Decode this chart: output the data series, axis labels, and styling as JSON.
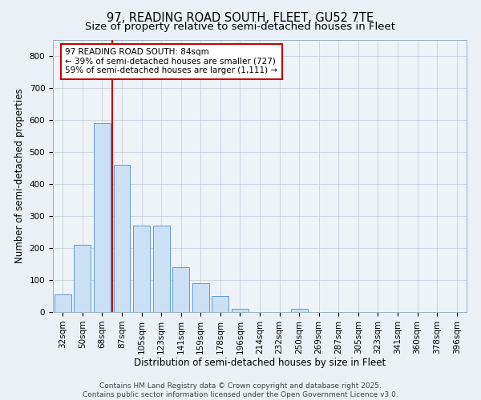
{
  "title": "97, READING ROAD SOUTH, FLEET, GU52 7TE",
  "subtitle": "Size of property relative to semi-detached houses in Fleet",
  "xlabel": "Distribution of semi-detached houses by size in Fleet",
  "ylabel": "Number of semi-detached properties",
  "categories": [
    "32sqm",
    "50sqm",
    "68sqm",
    "87sqm",
    "105sqm",
    "123sqm",
    "141sqm",
    "159sqm",
    "178sqm",
    "196sqm",
    "214sqm",
    "232sqm",
    "250sqm",
    "269sqm",
    "287sqm",
    "305sqm",
    "323sqm",
    "341sqm",
    "360sqm",
    "378sqm",
    "396sqm"
  ],
  "values": [
    55,
    210,
    590,
    460,
    270,
    270,
    140,
    90,
    50,
    10,
    0,
    0,
    10,
    0,
    0,
    0,
    0,
    0,
    0,
    0,
    0
  ],
  "bar_color": "#cce0f5",
  "bar_edge_color": "#5b9bd5",
  "pct_smaller": "39%",
  "n_smaller": 727,
  "pct_larger": "59%",
  "n_larger": 1111,
  "annotation_box_color": "#ffffff",
  "annotation_box_edge": "#cc0000",
  "red_line_color": "#cc0000",
  "red_line_x": 2.5,
  "ylim": [
    0,
    850
  ],
  "yticks": [
    0,
    100,
    200,
    300,
    400,
    500,
    600,
    700,
    800
  ],
  "footer": "Contains HM Land Registry data © Crown copyright and database right 2025.\nContains public sector information licensed under the Open Government Licence v3.0.",
  "title_fontsize": 10.5,
  "subtitle_fontsize": 9.5,
  "axis_label_fontsize": 8.5,
  "tick_fontsize": 7.5,
  "annotation_fontsize": 7.5,
  "footer_fontsize": 6.5,
  "bg_color": "#eaf0f6",
  "plot_bg_color": "#eef3f8"
}
